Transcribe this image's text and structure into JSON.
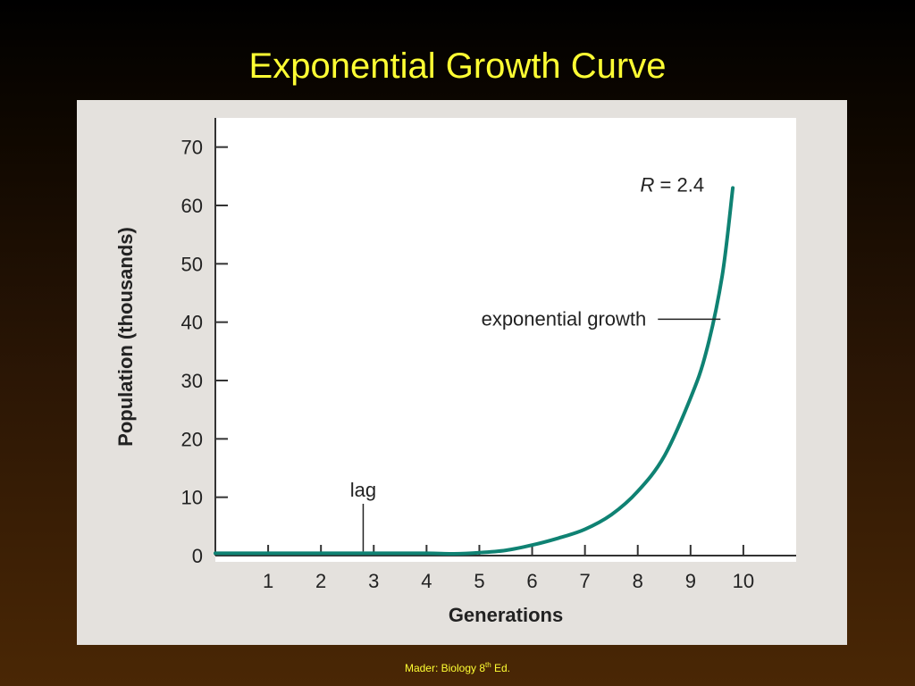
{
  "slide": {
    "title": "Exponential Growth Curve",
    "footer": {
      "prefix": "Mader: Biology 8",
      "superscript": "th",
      "suffix": " Ed."
    }
  },
  "colors": {
    "title_text": "#ffff33",
    "panel_background": "#e4e1dd",
    "plot_background": "#ffffff",
    "curve": "#0f8273",
    "axis": "#333333"
  },
  "chart_data": {
    "type": "line",
    "title": "",
    "xlabel": "Generations",
    "ylabel": "Population (thousands)",
    "xlim": [
      0,
      11
    ],
    "ylim": [
      0,
      75
    ],
    "x_ticks": [
      1,
      2,
      3,
      4,
      5,
      6,
      7,
      8,
      9,
      10
    ],
    "y_ticks": [
      0,
      10,
      20,
      30,
      40,
      50,
      60,
      70
    ],
    "grid": false,
    "series": [
      {
        "x": [
          0,
          1,
          2,
          3,
          4,
          4.5,
          5,
          5.5,
          6,
          6.5,
          7,
          7.5,
          8,
          8.5,
          9,
          9.3,
          9.6,
          9.8
        ],
        "y": [
          0.4,
          0.4,
          0.4,
          0.4,
          0.4,
          0.3,
          0.5,
          0.9,
          1.8,
          3.0,
          4.5,
          7.0,
          11.0,
          17.0,
          27.0,
          35.0,
          48.0,
          63.0
        ]
      }
    ],
    "annotations": [
      {
        "text": "R = 2.4",
        "variable": "R",
        "rest": " = 2.4",
        "x": 9.8,
        "y": 63
      },
      {
        "text": "exponential growth",
        "x": 9.6,
        "y": 40.5
      },
      {
        "text": "lag",
        "x": 2.8,
        "y": 0.4
      }
    ]
  }
}
